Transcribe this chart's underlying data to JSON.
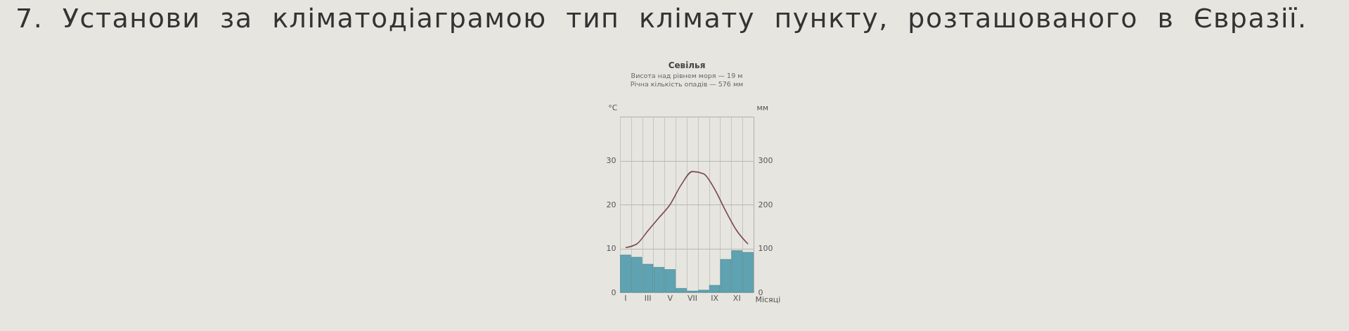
{
  "chart_data": {
    "type": "bar",
    "title": "Севілья",
    "annotations": [
      "7. Установи за кліматодіаграмою тип клімату пункту, розташованого в Євразії.",
      "Висота над рівнем моря — 19 м",
      "Річна кількість опадів — 576 мм"
    ],
    "categories": [
      "I",
      null,
      "III",
      null,
      "V",
      null,
      "VII",
      null,
      "IX",
      null,
      "XI",
      null
    ],
    "xlabel": "Місяці",
    "ylabel": "°C",
    "y2label": "мм",
    "series": [
      {
        "axis": "y2",
        "color": "#5fa3b2",
        "values": [
          85,
          80,
          64,
          57,
          52,
          9,
          3,
          5,
          16,
          75,
          95,
          91
        ]
      },
      {
        "type": "line",
        "axis": "y",
        "color": "#7a4656",
        "values": [
          10.2,
          11,
          14,
          17,
          20,
          24.5,
          27.5,
          27,
          23.5,
          18.5,
          14,
          11
        ]
      }
    ],
    "ylim": [
      0,
      40
    ],
    "yticks": [
      0,
      10,
      20,
      30
    ],
    "y2lim": [
      0,
      400
    ],
    "y2ticks": [
      0,
      100,
      200,
      300
    ],
    "grid": true,
    "marker": "none"
  }
}
